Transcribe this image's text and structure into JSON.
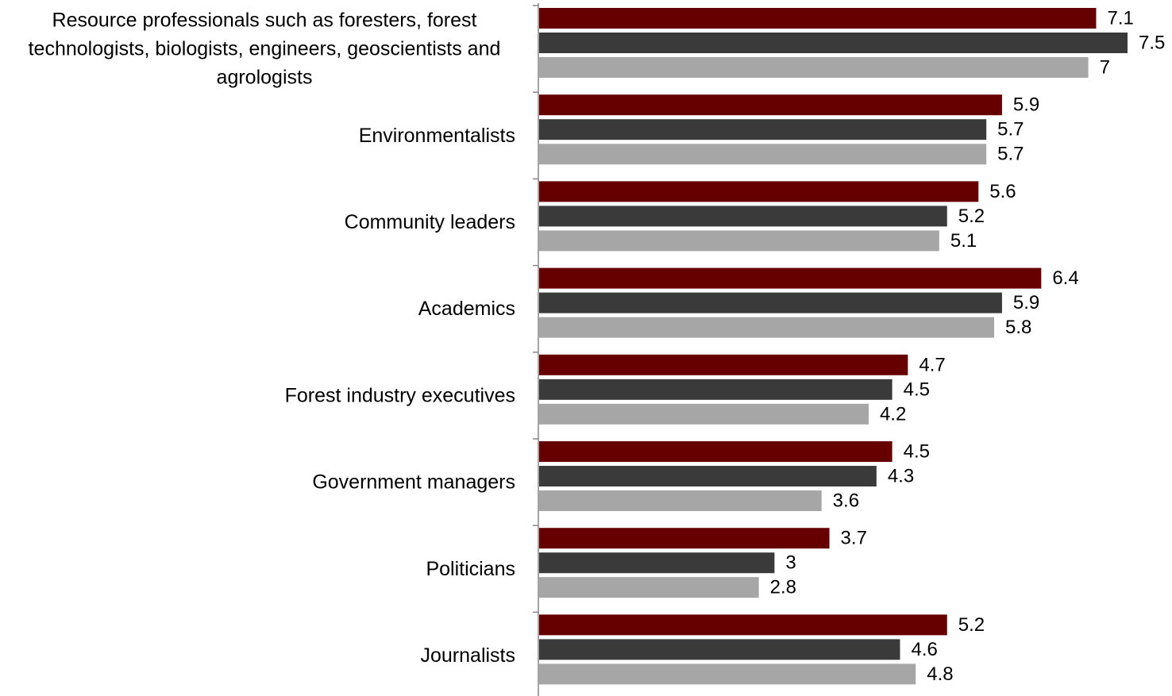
{
  "chart_data": {
    "type": "bar",
    "orientation": "horizontal",
    "categories": [
      "Resource professionals such as foresters, forest technologists, biologists, engineers, geoscientists and agrologists",
      "Environmentalists",
      "Community leaders",
      "Academics",
      "Forest industry executives",
      "Government managers",
      "Politicians",
      "Journalists"
    ],
    "category_lines": [
      [
        "Resource professionals such as foresters, forest",
        "technologists, biologists, engineers, geoscientists and",
        "agrologists"
      ],
      [
        "Environmentalists"
      ],
      [
        "Community leaders"
      ],
      [
        "Academics"
      ],
      [
        "Forest industry executives"
      ],
      [
        "Government managers"
      ],
      [
        "Politicians"
      ],
      [
        "Journalists"
      ]
    ],
    "series": [
      {
        "values": [
          7.1,
          5.9,
          5.6,
          6.4,
          4.7,
          4.5,
          3.7,
          5.2
        ],
        "labels": [
          "7.1",
          "5.9",
          "5.6",
          "6.4",
          "4.7",
          "4.5",
          "3.7",
          "5.2"
        ],
        "color": "#660000"
      },
      {
        "values": [
          7.5,
          5.7,
          5.2,
          5.9,
          4.5,
          4.3,
          3.0,
          4.6
        ],
        "labels": [
          "7.5",
          "5.7",
          "5.2",
          "5.9",
          "4.5",
          "4.3",
          "3",
          "4.6"
        ],
        "color": "#3a3a3a"
      },
      {
        "values": [
          7.0,
          5.7,
          5.1,
          5.8,
          4.2,
          3.6,
          2.8,
          4.8
        ],
        "labels": [
          "7",
          "5.7",
          "5.1",
          "5.8",
          "4.2",
          "3.6",
          "2.8",
          "4.8"
        ],
        "color": "#a6a6a6"
      }
    ],
    "xlim": [
      0,
      7.5
    ],
    "title": "",
    "xlabel": "",
    "ylabel": "",
    "grid": false,
    "legend": "none"
  }
}
